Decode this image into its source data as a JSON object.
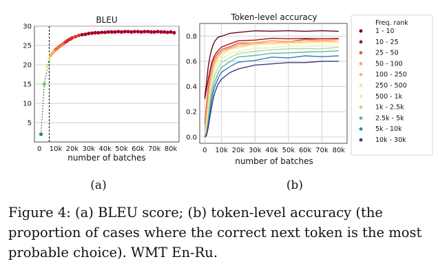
{
  "caption": "Figure 4: (a) BLEU score; (b) token-level accuracy (the proportion of cases where the correct next token is the most probable choice). WMT En-Ru.",
  "panel_labels": [
    "(a)",
    "(b)"
  ],
  "chart_data": [
    {
      "type": "scatter",
      "title": "BLEU",
      "xlabel": "number of batches",
      "ylabel": "",
      "xlim": [
        -3000,
        85000
      ],
      "ylim": [
        0,
        30
      ],
      "xticks": [
        "0",
        "10k",
        "20k",
        "30k",
        "40k",
        "50k",
        "60k",
        "70k",
        "80k"
      ],
      "xtick_values": [
        0,
        10000,
        20000,
        30000,
        40000,
        50000,
        60000,
        70000,
        80000
      ],
      "yticks": [
        "5",
        "10",
        "15",
        "20",
        "25",
        "30"
      ],
      "ytick_values": [
        5,
        10,
        15,
        20,
        25,
        30
      ],
      "grid": "horizontal",
      "vline_x": 6000,
      "colormap": [
        "#1f8c46",
        "#75c465",
        "#d9ef8b",
        "#fdae61",
        "#f46d43",
        "#d73027",
        "#a50026"
      ],
      "x": [
        1000,
        3000,
        5000,
        6000,
        7000,
        8000,
        9000,
        10000,
        11000,
        12000,
        13000,
        14000,
        15000,
        16000,
        17000,
        18000,
        19000,
        20000,
        22000,
        24000,
        26000,
        28000,
        30000,
        32000,
        34000,
        36000,
        38000,
        40000,
        42000,
        44000,
        46000,
        48000,
        50000,
        52000,
        54000,
        56000,
        58000,
        60000,
        62000,
        64000,
        66000,
        68000,
        70000,
        72000,
        74000,
        76000,
        78000,
        80000,
        82000
      ],
      "y": [
        2,
        15,
        19.5,
        21.5,
        22.5,
        23,
        23.5,
        24,
        24.3,
        24.7,
        25,
        25.3,
        25.6,
        25.9,
        26.2,
        26.5,
        26.7,
        27,
        27.3,
        27.6,
        27.8,
        27.9,
        28.1,
        28.2,
        28.3,
        28.3,
        28.4,
        28.4,
        28.5,
        28.5,
        28.5,
        28.6,
        28.5,
        28.6,
        28.6,
        28.5,
        28.6,
        28.6,
        28.5,
        28.6,
        28.6,
        28.5,
        28.5,
        28.6,
        28.5,
        28.5,
        28.4,
        28.5,
        28.3
      ]
    },
    {
      "type": "line",
      "title": "Token-level accuracy",
      "xlabel": "number of batches",
      "ylabel": "",
      "xlim": [
        -3000,
        85000
      ],
      "ylim": [
        -0.05,
        0.9
      ],
      "xticks": [
        "0",
        "10k",
        "20k",
        "30k",
        "40k",
        "50k",
        "60k",
        "70k",
        "80k"
      ],
      "xtick_values": [
        0,
        10000,
        20000,
        30000,
        40000,
        50000,
        60000,
        70000,
        80000
      ],
      "yticks": [
        "0.0",
        "0.2",
        "0.4",
        "0.6",
        "0.8"
      ],
      "ytick_values": [
        0.0,
        0.2,
        0.4,
        0.6,
        0.8
      ],
      "grid": "both",
      "legend_title": "Freq. rank",
      "legend_position": "right",
      "x": [
        0,
        1000,
        2000,
        3000,
        4000,
        5000,
        6000,
        8000,
        10000,
        15000,
        20000,
        30000,
        40000,
        50000,
        60000,
        70000,
        80000
      ],
      "series": [
        {
          "name": "1 - 10",
          "color": "#67001f",
          "values": [
            0.31,
            0.42,
            0.55,
            0.63,
            0.69,
            0.73,
            0.76,
            0.79,
            0.8,
            0.82,
            0.83,
            0.84,
            0.84,
            0.84,
            0.84,
            0.84,
            0.84
          ]
        },
        {
          "name": "10 - 25",
          "color": "#a50f15",
          "values": [
            0.3,
            0.37,
            0.45,
            0.52,
            0.58,
            0.62,
            0.65,
            0.69,
            0.71,
            0.74,
            0.76,
            0.77,
            0.78,
            0.78,
            0.78,
            0.78,
            0.78
          ]
        },
        {
          "name": "25 - 50",
          "color": "#d6604d",
          "values": [
            0.1,
            0.25,
            0.38,
            0.48,
            0.55,
            0.6,
            0.63,
            0.67,
            0.69,
            0.72,
            0.74,
            0.75,
            0.76,
            0.76,
            0.77,
            0.77,
            0.77
          ]
        },
        {
          "name": "50 - 100",
          "color": "#f4a582",
          "values": [
            0.05,
            0.18,
            0.32,
            0.43,
            0.51,
            0.57,
            0.61,
            0.65,
            0.68,
            0.71,
            0.73,
            0.75,
            0.76,
            0.76,
            0.76,
            0.77,
            0.77
          ]
        },
        {
          "name": "100 - 250",
          "color": "#fdb863",
          "values": [
            0.02,
            0.12,
            0.27,
            0.39,
            0.48,
            0.54,
            0.59,
            0.64,
            0.67,
            0.7,
            0.72,
            0.74,
            0.75,
            0.75,
            0.75,
            0.76,
            0.76
          ]
        },
        {
          "name": "250 - 500",
          "color": "#fee090",
          "values": [
            0.01,
            0.09,
            0.23,
            0.36,
            0.45,
            0.52,
            0.57,
            0.62,
            0.65,
            0.69,
            0.71,
            0.73,
            0.74,
            0.74,
            0.75,
            0.75,
            0.75
          ]
        },
        {
          "name": "500 - 1k",
          "color": "#e0f3b2",
          "values": [
            0.0,
            0.06,
            0.19,
            0.31,
            0.41,
            0.48,
            0.53,
            0.59,
            0.62,
            0.66,
            0.68,
            0.7,
            0.71,
            0.72,
            0.72,
            0.72,
            0.72
          ]
        },
        {
          "name": "1k - 2.5k",
          "color": "#a6dba0",
          "values": [
            0.0,
            0.04,
            0.15,
            0.27,
            0.37,
            0.44,
            0.49,
            0.55,
            0.59,
            0.63,
            0.66,
            0.68,
            0.69,
            0.7,
            0.7,
            0.7,
            0.71
          ]
        },
        {
          "name": "2.5k - 5k",
          "color": "#5fb3a3",
          "values": [
            0.0,
            0.03,
            0.12,
            0.23,
            0.32,
            0.39,
            0.44,
            0.51,
            0.55,
            0.6,
            0.63,
            0.65,
            0.66,
            0.67,
            0.67,
            0.68,
            0.68
          ]
        },
        {
          "name": "5k - 10k",
          "color": "#2c7fb8",
          "values": [
            0.0,
            0.02,
            0.09,
            0.19,
            0.28,
            0.35,
            0.4,
            0.47,
            0.51,
            0.56,
            0.59,
            0.61,
            0.63,
            0.63,
            0.64,
            0.64,
            0.64
          ]
        },
        {
          "name": "10k - 30k",
          "color": "#3b3b8f",
          "values": [
            0.0,
            0.01,
            0.07,
            0.15,
            0.23,
            0.3,
            0.35,
            0.42,
            0.46,
            0.51,
            0.54,
            0.57,
            0.58,
            0.59,
            0.59,
            0.6,
            0.6
          ]
        }
      ]
    }
  ]
}
